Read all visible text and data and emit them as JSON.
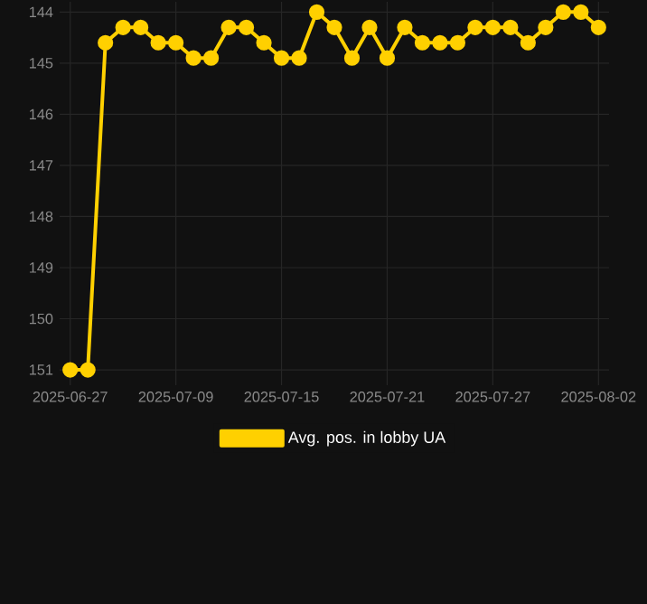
{
  "chart_data": {
    "type": "line",
    "categories": [
      "2025-06-27",
      null,
      null,
      null,
      null,
      null,
      "2025-07-09",
      null,
      null,
      null,
      null,
      null,
      "2025-07-15",
      null,
      null,
      null,
      null,
      null,
      "2025-07-21",
      null,
      null,
      null,
      null,
      null,
      "2025-07-27",
      null,
      null,
      null,
      null,
      null,
      "2025-08-02"
    ],
    "series": [
      {
        "name": "Avg. pos. in lobby UA",
        "color": "#ffd000",
        "values": [
          151,
          151,
          144.6,
          144.3,
          144.3,
          144.6,
          144.6,
          144.9,
          144.9,
          144.3,
          144.3,
          144.6,
          144.9,
          144.9,
          144.0,
          144.3,
          144.9,
          144.3,
          144.9,
          144.3,
          144.6,
          144.6,
          144.6,
          144.3,
          144.3,
          144.3,
          144.6,
          144.3,
          144.0,
          144.0,
          144.3
        ]
      }
    ],
    "ylim": [
      151.3,
      143.8
    ],
    "yticks": [
      144,
      145,
      146,
      147,
      148,
      149,
      150,
      151
    ],
    "grid": true,
    "legend": "bottom",
    "marker": "circle",
    "line_style": "solid"
  }
}
